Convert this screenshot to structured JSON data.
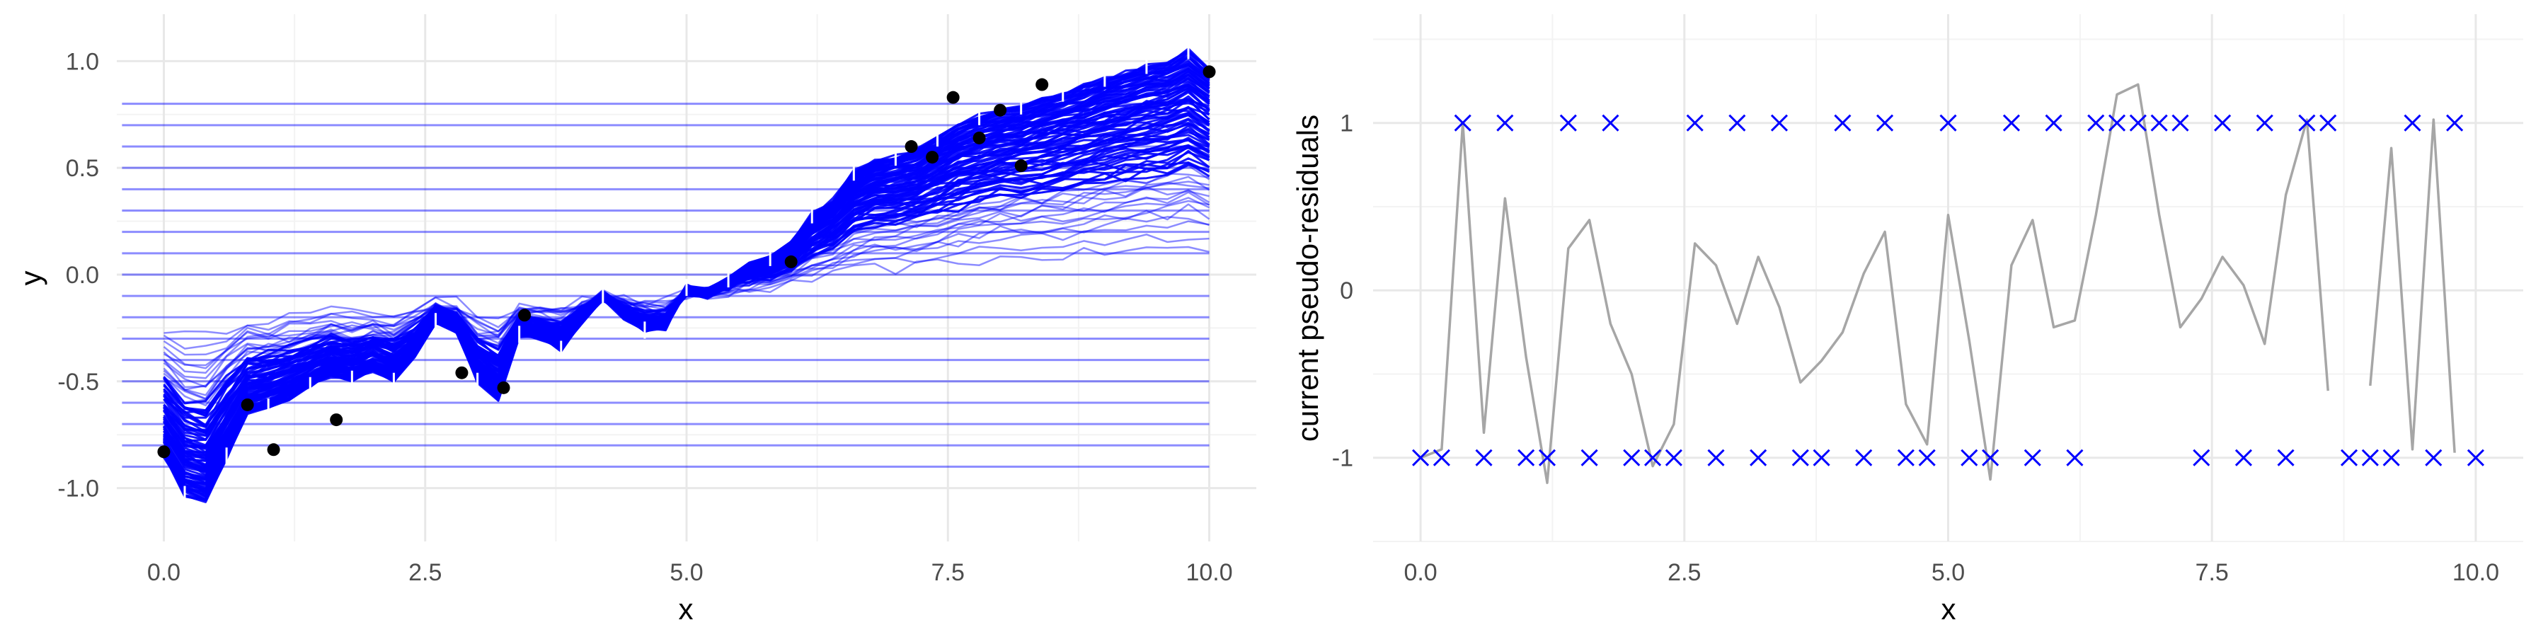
{
  "colors": {
    "fit": "#0000ff",
    "points": "#000000",
    "residual_line": "#a6a6a6",
    "cross": "#0000ff",
    "grid_major": "#e8e8e8",
    "grid_minor": "#f3f3f3",
    "vertical_seg": "#ffffff"
  },
  "chart_data": [
    {
      "type": "line",
      "title": "",
      "xlabel": "x",
      "ylabel": "y",
      "xlim": [
        -0.45,
        10.45
      ],
      "ylim": [
        -1.25,
        1.22
      ],
      "xticks": [
        0.0,
        2.5,
        5.0,
        7.5,
        10.0
      ],
      "xtick_labels": [
        "0.0",
        "2.5",
        "5.0",
        "7.5",
        "10.0"
      ],
      "yticks": [
        -1.0,
        -0.5,
        0.0,
        0.5,
        1.0
      ],
      "ytick_labels": [
        "-1.0",
        "-0.5",
        "0.0",
        "0.5",
        "1.0"
      ],
      "grid": true,
      "curve_x": [
        0.0,
        0.2,
        0.4,
        0.6,
        0.8,
        1.0,
        1.2,
        1.4,
        1.6,
        1.8,
        2.0,
        2.2,
        2.4,
        2.6,
        2.8,
        3.0,
        3.2,
        3.4,
        3.6,
        3.8,
        4.0,
        4.2,
        4.4,
        4.6,
        4.8,
        5.0,
        5.2,
        5.4,
        5.6,
        5.8,
        6.0,
        6.2,
        6.4,
        6.6,
        6.8,
        7.0,
        7.2,
        7.4,
        7.6,
        7.8,
        8.0,
        8.2,
        8.4,
        8.6,
        8.8,
        9.0,
        9.2,
        9.4,
        9.6,
        9.8,
        10.0
      ],
      "final_fit": [
        -0.85,
        -1.03,
        -1.07,
        -0.85,
        -0.65,
        -0.62,
        -0.58,
        -0.52,
        -0.47,
        -0.49,
        -0.45,
        -0.5,
        -0.38,
        -0.22,
        -0.26,
        -0.5,
        -0.58,
        -0.28,
        -0.3,
        -0.35,
        -0.22,
        -0.1,
        -0.2,
        -0.26,
        -0.25,
        -0.06,
        -0.08,
        -0.02,
        0.05,
        0.08,
        0.15,
        0.28,
        0.35,
        0.48,
        0.53,
        0.55,
        0.58,
        0.64,
        0.7,
        0.74,
        0.77,
        0.79,
        0.82,
        0.85,
        0.88,
        0.92,
        0.95,
        0.98,
        1.0,
        1.05,
        0.97
      ],
      "ensemble_count": 100,
      "flat_levels": [
        -0.1,
        -0.2,
        -0.3,
        -0.4,
        -0.5,
        -0.6,
        -0.7,
        -0.8,
        -0.9,
        0.0,
        0.1,
        0.2,
        0.3,
        0.4,
        0.5,
        0.6,
        0.7,
        0.8
      ],
      "points": [
        {
          "x": 0.0,
          "y": -0.83
        },
        {
          "x": 0.8,
          "y": -0.61
        },
        {
          "x": 1.05,
          "y": -0.82
        },
        {
          "x": 1.65,
          "y": -0.68
        },
        {
          "x": 2.85,
          "y": -0.46
        },
        {
          "x": 3.25,
          "y": -0.53
        },
        {
          "x": 3.45,
          "y": -0.19
        },
        {
          "x": 6.0,
          "y": 0.06
        },
        {
          "x": 7.15,
          "y": 0.6
        },
        {
          "x": 7.35,
          "y": 0.55
        },
        {
          "x": 7.55,
          "y": 0.83
        },
        {
          "x": 7.8,
          "y": 0.64
        },
        {
          "x": 8.0,
          "y": 0.77
        },
        {
          "x": 8.2,
          "y": 0.51
        },
        {
          "x": 8.4,
          "y": 0.89
        },
        {
          "x": 10.0,
          "y": 0.95
        }
      ]
    },
    {
      "type": "line",
      "title": "",
      "xlabel": "x",
      "ylabel": "current pseudo-residuals",
      "xlim": [
        -0.45,
        10.45
      ],
      "ylim": [
        -1.5,
        1.65
      ],
      "xticks": [
        0.0,
        2.5,
        5.0,
        7.5,
        10.0
      ],
      "xtick_labels": [
        "0.0",
        "2.5",
        "5.0",
        "7.5",
        "10.0"
      ],
      "yticks": [
        -1,
        0,
        1
      ],
      "ytick_labels": [
        "-1",
        "0",
        "1"
      ],
      "grid": true,
      "residual_x": [
        0.0,
        0.2,
        0.4,
        0.6,
        0.8,
        1.0,
        1.2,
        1.4,
        1.6,
        1.8,
        2.0,
        2.2,
        2.4,
        2.6,
        2.8,
        3.0,
        3.2,
        3.4,
        3.6,
        3.8,
        4.0,
        4.2,
        4.4,
        4.6,
        4.8,
        5.0,
        5.2,
        5.4,
        5.6,
        5.8,
        6.0,
        6.2,
        6.4,
        6.6,
        6.8,
        7.0,
        7.2,
        7.4,
        7.6,
        7.8,
        8.0,
        8.2,
        8.4,
        8.6,
        8.8,
        9.0,
        9.2,
        9.4,
        9.6,
        9.8,
        10.0
      ],
      "residual_y": [
        -1.0,
        -0.95,
        1.0,
        -0.85,
        0.55,
        -0.4,
        -1.15,
        0.25,
        0.42,
        -0.2,
        -0.5,
        -1.05,
        -0.8,
        0.28,
        0.15,
        -0.2,
        0.2,
        -0.1,
        -0.55,
        -0.42,
        -0.25,
        0.1,
        0.35,
        -0.68,
        -0.92,
        0.45,
        -0.3,
        -1.13,
        0.15,
        0.42,
        -0.22,
        -0.18,
        0.45,
        1.17,
        1.23,
        0.45,
        -0.22,
        -0.05,
        0.2,
        0.03,
        -0.32,
        0.57,
        1.02,
        -0.6,
        null,
        -0.57,
        0.85,
        -0.95,
        1.02,
        -0.97,
        null
      ],
      "crosses_x": [
        0.0,
        0.2,
        0.4,
        0.6,
        0.8,
        1.0,
        1.2,
        1.4,
        1.6,
        1.8,
        2.0,
        2.2,
        2.4,
        2.6,
        2.8,
        3.0,
        3.2,
        3.4,
        3.6,
        3.8,
        4.0,
        4.2,
        4.4,
        4.6,
        4.8,
        5.0,
        5.2,
        5.4,
        5.6,
        5.8,
        6.0,
        6.2,
        6.4,
        6.6,
        6.8,
        7.0,
        7.2,
        7.4,
        7.6,
        7.8,
        8.0,
        8.2,
        8.4,
        8.6,
        8.8,
        9.0,
        9.2,
        9.4,
        9.6,
        9.8,
        10.0
      ],
      "crosses_y": [
        -1,
        -1,
        1,
        -1,
        1,
        -1,
        -1,
        1,
        -1,
        1,
        -1,
        -1,
        -1,
        1,
        -1,
        1,
        -1,
        1,
        -1,
        -1,
        1,
        -1,
        1,
        -1,
        -1,
        1,
        -1,
        -1,
        1,
        -1,
        1,
        -1,
        1,
        1,
        1,
        1,
        1,
        -1,
        1,
        -1,
        1,
        -1,
        1,
        1,
        -1,
        -1,
        -1,
        1,
        -1,
        1,
        -1
      ]
    }
  ]
}
